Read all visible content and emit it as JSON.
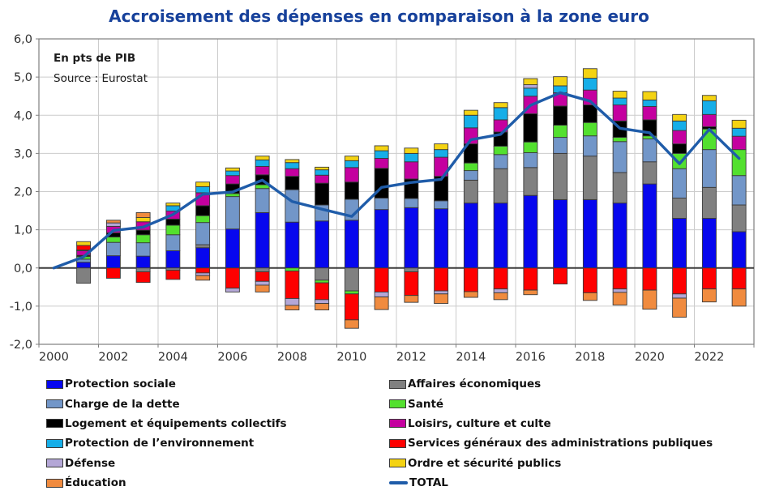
{
  "title": {
    "text": "Accroisement des dépenses en comparaison à la zone euro",
    "color": "#17419B"
  },
  "chart_data": {
    "type": "stacked-bar-with-line",
    "title": "Accroisement des dépenses en comparaison à la zone euro",
    "unit_note": "En pts de PIB",
    "source_note": "Source : Eurostat",
    "ylabel": "pts de PIB",
    "ylim": [
      -2,
      6
    ],
    "grid": true,
    "legend_position": "bottom",
    "years": [
      2000,
      2001,
      2002,
      2003,
      2004,
      2005,
      2006,
      2007,
      2008,
      2009,
      2010,
      2011,
      2012,
      2013,
      2014,
      2015,
      2016,
      2017,
      2018,
      2019,
      2020,
      2021,
      2022,
      2023
    ],
    "x_tick_labels": [
      "2000",
      "2002",
      "2004",
      "2006",
      "2008",
      "2010",
      "2012",
      "2014",
      "2016",
      "2018",
      "2020",
      "2022"
    ],
    "y_ticks": [
      {
        "label": "6,0",
        "value": 6
      },
      {
        "label": "5,0",
        "value": 5
      },
      {
        "label": "4,0",
        "value": 4
      },
      {
        "label": "3,0",
        "value": 3
      },
      {
        "label": "2,0",
        "value": 2
      },
      {
        "label": "1,0",
        "value": 1
      },
      {
        "label": "0,0",
        "value": 0
      },
      {
        "label": "-1,0",
        "value": -1
      },
      {
        "label": "-2,0",
        "value": -2
      }
    ],
    "series": [
      {
        "id": "protection-sociale",
        "name": "Protection sociale",
        "color": "#0707EE",
        "values": [
          0,
          0.15,
          0.32,
          0.31,
          0.45,
          0.53,
          1.02,
          1.45,
          1.2,
          1.23,
          1.25,
          1.53,
          1.58,
          1.55,
          1.7,
          1.7,
          1.9,
          1.79,
          1.79,
          1.7,
          2.2,
          1.3,
          1.3,
          0.95
        ]
      },
      {
        "id": "affaires-economiques",
        "name": "Affaires économiques",
        "color": "#808080",
        "values": [
          0,
          -0.4,
          0,
          -0.1,
          -0.06,
          0.08,
          0,
          -0.1,
          0,
          -0.32,
          -0.6,
          0,
          -0.1,
          0,
          0.6,
          0.9,
          0.73,
          1.21,
          1.14,
          0.8,
          0.58,
          0.53,
          0.81,
          0.7
        ]
      },
      {
        "id": "charge-de-la-dette",
        "name": "Charge de la dette",
        "color": "#7296C8",
        "values": [
          0,
          0.08,
          0.35,
          0.35,
          0.42,
          0.58,
          0.85,
          0.63,
          0.85,
          0.42,
          0.55,
          0.3,
          0.24,
          0.21,
          0.25,
          0.37,
          0.39,
          0.42,
          0.53,
          0.81,
          0.6,
          0.77,
          0.99,
          0.77
        ]
      },
      {
        "id": "sante",
        "name": "Santé",
        "color": "#53E02F",
        "values": [
          0,
          0.07,
          0.14,
          0.21,
          0.25,
          0.18,
          0.08,
          0.1,
          -0.08,
          -0.07,
          -0.08,
          0,
          0,
          0,
          0.2,
          0.22,
          0.28,
          0.32,
          0.35,
          0.11,
          0.08,
          0.4,
          0.54,
          0.68
        ]
      },
      {
        "id": "logement-equipements",
        "name": "Logement et équipements collectifs",
        "color": "#000000",
        "values": [
          0,
          0.03,
          0.11,
          0.12,
          0.16,
          0.26,
          0.25,
          0.26,
          0.35,
          0.57,
          0.45,
          0.78,
          0.51,
          0.64,
          0.5,
          0.37,
          0.74,
          0.5,
          0.46,
          0.43,
          0.42,
          0.25,
          0.06,
          0
        ]
      },
      {
        "id": "loisirs-culture-culte",
        "name": "Loisirs, culture et culte",
        "color": "#C4009F",
        "values": [
          0,
          0.12,
          0.17,
          0.22,
          0.21,
          0.34,
          0.22,
          0.22,
          0.2,
          0.21,
          0.38,
          0.26,
          0.45,
          0.5,
          0.42,
          0.32,
          0.46,
          0.35,
          0.39,
          0.42,
          0.35,
          0.35,
          0.32,
          0.35
        ]
      },
      {
        "id": "protection-environnement",
        "name": "Protection de l’environnement",
        "color": "#16AEE8",
        "values": [
          0,
          0.02,
          0,
          0,
          0.14,
          0.16,
          0.12,
          0.17,
          0.16,
          0.14,
          0.18,
          0.2,
          0.22,
          0.2,
          0.33,
          0.32,
          0.21,
          0.18,
          0.31,
          0.18,
          0.17,
          0.25,
          0.36,
          0.21
        ]
      },
      {
        "id": "services-generaux",
        "name": "Services généraux des administrations publiques",
        "color": "#FE0000",
        "values": [
          0,
          0.12,
          -0.27,
          -0.28,
          -0.24,
          -0.13,
          -0.53,
          -0.25,
          -0.72,
          -0.44,
          -0.68,
          -0.63,
          -0.62,
          -0.6,
          -0.62,
          -0.55,
          -0.58,
          -0.42,
          -0.65,
          -0.55,
          -0.58,
          -0.68,
          -0.55,
          -0.55
        ]
      },
      {
        "id": "defense",
        "name": "Défense",
        "color": "#B4A7D6",
        "values": [
          0,
          0,
          0.09,
          0,
          0,
          -0.07,
          -0.1,
          -0.1,
          -0.18,
          -0.1,
          0,
          -0.13,
          0,
          -0.08,
          0,
          -0.1,
          0.09,
          0,
          0,
          -0.09,
          0,
          -0.11,
          0,
          0
        ]
      },
      {
        "id": "ordre-securite",
        "name": "Ordre et sécurité publics",
        "color": "#F4D313",
        "values": [
          0,
          0.1,
          0,
          0.11,
          0.07,
          0.12,
          0.08,
          0.1,
          0.08,
          0.07,
          0.12,
          0.13,
          0.14,
          0.15,
          0.13,
          0.13,
          0.16,
          0.24,
          0.25,
          0.18,
          0.22,
          0.17,
          0.14,
          0.21
        ]
      },
      {
        "id": "education",
        "name": "Éducation",
        "color": "#F08B3F",
        "values": [
          0,
          0,
          0.07,
          0.13,
          0,
          -0.12,
          0,
          -0.18,
          -0.12,
          -0.17,
          -0.22,
          -0.33,
          -0.18,
          -0.25,
          -0.15,
          -0.18,
          -0.12,
          0,
          -0.2,
          -0.33,
          -0.5,
          -0.5,
          -0.34,
          -0.45
        ]
      }
    ],
    "total": {
      "id": "total",
      "name": "TOTAL",
      "color": "#1F5CA9",
      "values": [
        0,
        0.29,
        0.98,
        1.07,
        1.4,
        1.93,
        1.99,
        2.3,
        1.74,
        1.54,
        1.35,
        2.11,
        2.24,
        2.32,
        3.36,
        3.5,
        4.26,
        4.59,
        4.37,
        3.66,
        3.54,
        2.73,
        3.63,
        2.87
      ]
    }
  },
  "legend": {
    "left": [
      {
        "series_id": "protection-sociale",
        "label": "Protection sociale",
        "swatch": "box"
      },
      {
        "series_id": "charge-de-la-dette",
        "label": "Charge de la dette",
        "swatch": "box"
      },
      {
        "series_id": "logement-equipements",
        "label": "Logement et équipements collectifs",
        "swatch": "box"
      },
      {
        "series_id": "protection-environnement",
        "label": "Protection de l’environnement",
        "swatch": "box"
      },
      {
        "series_id": "defense",
        "label": "Défense",
        "swatch": "box"
      },
      {
        "series_id": "education",
        "label": "Éducation",
        "swatch": "box"
      }
    ],
    "right": [
      {
        "series_id": "affaires-economiques",
        "label": "Affaires économiques",
        "swatch": "box"
      },
      {
        "series_id": "sante",
        "label": "Santé",
        "swatch": "box"
      },
      {
        "series_id": "loisirs-culture-culte",
        "label": "Loisirs, culture et culte",
        "swatch": "box"
      },
      {
        "series_id": "services-generaux",
        "label": "Services généraux des administrations publiques",
        "swatch": "box"
      },
      {
        "series_id": "ordre-securite",
        "label": "Ordre et sécurité publics",
        "swatch": "box"
      },
      {
        "series_id": "total",
        "label": "TOTAL",
        "swatch": "line"
      }
    ]
  }
}
